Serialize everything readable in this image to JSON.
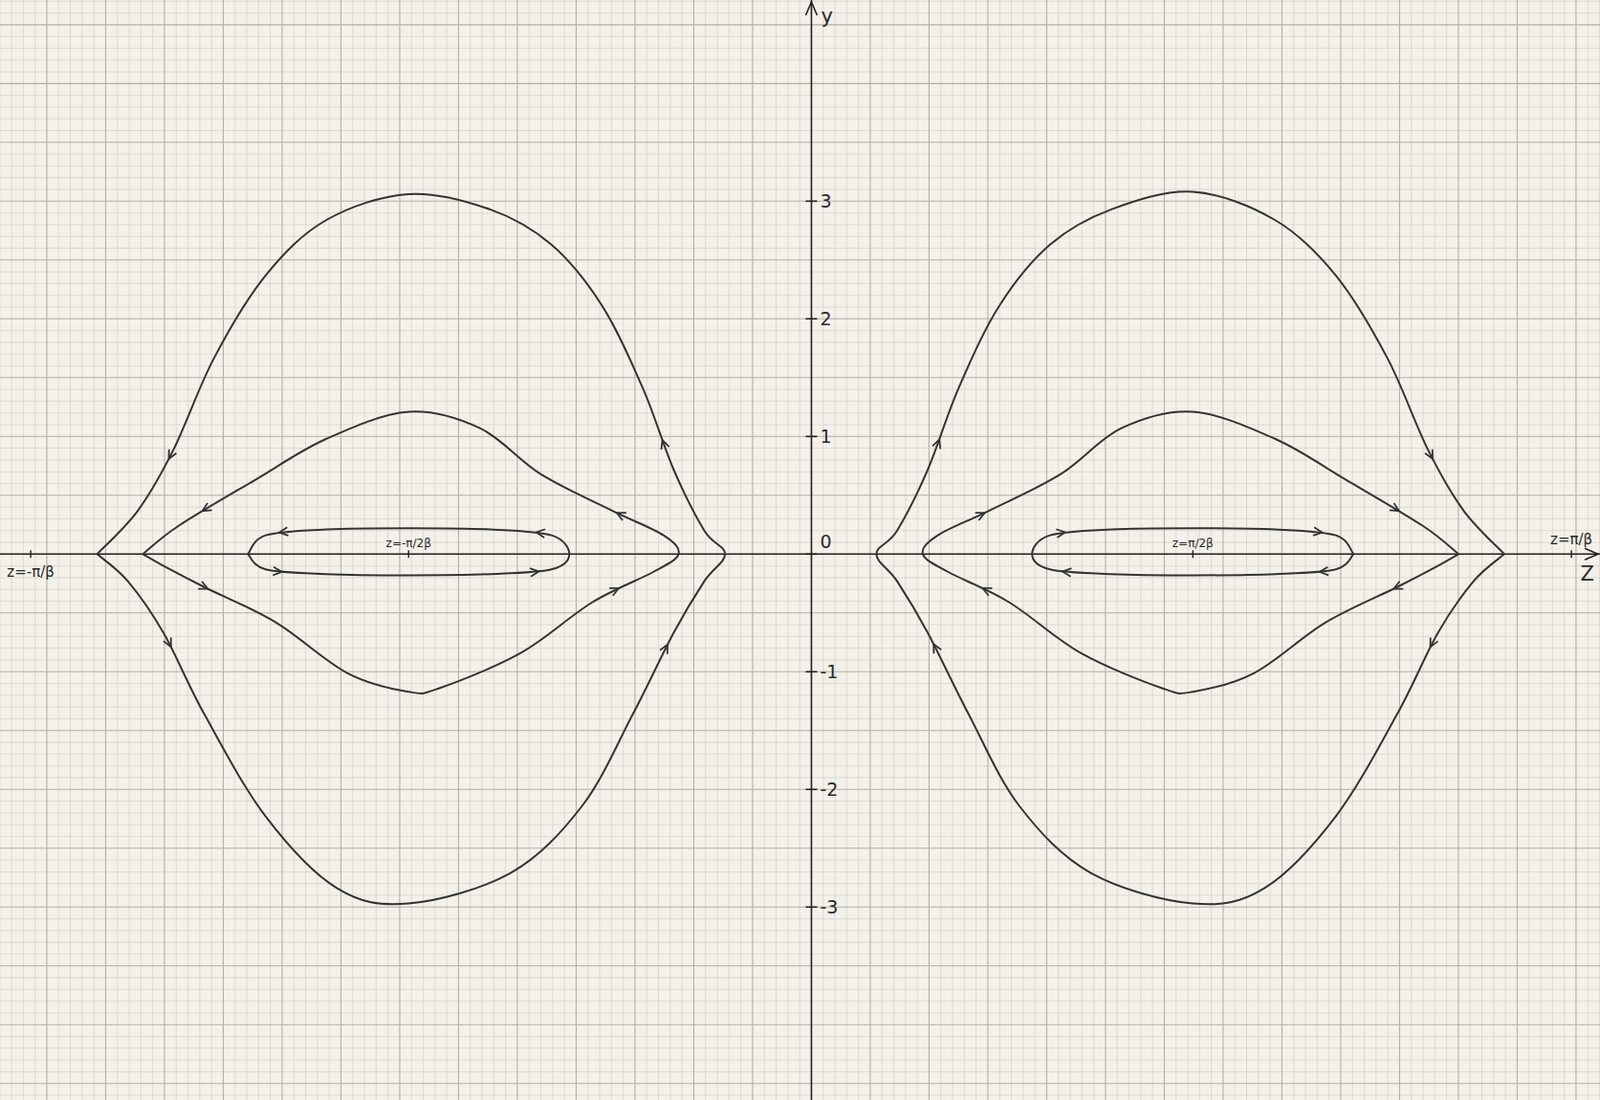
{
  "chart_data": {
    "type": "line",
    "x_label": "Z",
    "y_label": "y",
    "xlim": [
      -1.136,
      1.104
    ],
    "ylim": [
      -4.64,
      4.71
    ],
    "xticks": [
      {
        "value": -1.093,
        "label": "z=-π/β"
      },
      {
        "value": -0.564,
        "label": "z=-π/2β"
      },
      {
        "value": 0.534,
        "label": "z=π/2β"
      },
      {
        "value": 1.064,
        "label": "z=π/β"
      }
    ],
    "yticks": [
      -3,
      -2,
      -1,
      0,
      1,
      2,
      3
    ],
    "grid": true,
    "color": "#333333",
    "series": [
      {
        "x": [
          -1.0,
          -0.957,
          -0.907,
          -0.85,
          -0.764,
          -0.664,
          -0.564,
          -0.421,
          -0.321,
          -0.25,
          -0.193,
          -0.15,
          -0.121,
          -0.15,
          -0.193,
          -0.236,
          -0.293,
          -0.364,
          -0.45,
          -0.564,
          -0.679,
          -0.764,
          -0.836,
          -0.893,
          -0.943,
          -1.0
        ],
        "values": [
          0,
          -0.23,
          -0.67,
          -1.36,
          -2.23,
          -2.84,
          -2.97,
          -2.71,
          -2.14,
          -1.36,
          -0.67,
          -0.23,
          0,
          0.2,
          0.72,
          1.41,
          2.11,
          2.63,
          2.93,
          3.06,
          2.84,
          2.37,
          1.67,
          0.89,
          0.37,
          0
        ]
      },
      {
        "x": [
          -0.936,
          -0.907,
          -0.85,
          -0.75,
          -0.65,
          -0.564,
          -0.521,
          -0.407,
          -0.307,
          -0.221,
          -0.186,
          -0.207,
          -0.279,
          -0.379,
          -0.464,
          -0.564,
          -0.679,
          -0.779,
          -0.886,
          -0.936
        ],
        "values": [
          0,
          -0.1,
          -0.28,
          -0.58,
          -1.01,
          -1.17,
          -1.14,
          -0.84,
          -0.41,
          -0.15,
          0,
          0.16,
          0.37,
          0.68,
          1.07,
          1.21,
          0.98,
          0.63,
          0.24,
          0
        ]
      },
      {
        "x": [
          -0.789,
          -0.764,
          -0.679,
          -0.564,
          -0.45,
          -0.364,
          -0.339,
          -0.364,
          -0.45,
          -0.564,
          -0.679,
          -0.764,
          -0.789
        ],
        "values": [
          0,
          -0.13,
          -0.17,
          -0.18,
          -0.17,
          -0.13,
          0,
          0.16,
          0.21,
          0.22,
          0.21,
          0.16,
          0
        ]
      },
      {
        "x": [
          0.97,
          0.927,
          0.877,
          0.82,
          0.734,
          0.634,
          0.534,
          0.391,
          0.291,
          0.22,
          0.163,
          0.12,
          0.091,
          0.12,
          0.163,
          0.206,
          0.263,
          0.334,
          0.42,
          0.534,
          0.649,
          0.734,
          0.806,
          0.863,
          0.913,
          0.97
        ],
        "values": [
          0,
          -0.23,
          -0.67,
          -1.36,
          -2.23,
          -2.84,
          -2.97,
          -2.71,
          -2.14,
          -1.36,
          -0.67,
          -0.23,
          0,
          0.2,
          0.72,
          1.41,
          2.11,
          2.63,
          2.93,
          3.08,
          2.84,
          2.37,
          1.67,
          0.89,
          0.37,
          0
        ]
      },
      {
        "x": [
          0.906,
          0.877,
          0.82,
          0.72,
          0.62,
          0.534,
          0.491,
          0.377,
          0.277,
          0.191,
          0.156,
          0.177,
          0.249,
          0.349,
          0.434,
          0.534,
          0.649,
          0.749,
          0.856,
          0.906
        ],
        "values": [
          0,
          -0.1,
          -0.28,
          -0.58,
          -1.01,
          -1.17,
          -1.14,
          -0.84,
          -0.41,
          -0.15,
          0,
          0.16,
          0.37,
          0.68,
          1.07,
          1.21,
          0.98,
          0.63,
          0.24,
          0
        ]
      },
      {
        "x": [
          0.759,
          0.734,
          0.649,
          0.534,
          0.42,
          0.334,
          0.309,
          0.334,
          0.42,
          0.534,
          0.649,
          0.734,
          0.759
        ],
        "values": [
          0,
          -0.13,
          -0.17,
          -0.18,
          -0.17,
          -0.13,
          0,
          0.16,
          0.21,
          0.22,
          0.21,
          0.16,
          0
        ]
      }
    ]
  }
}
